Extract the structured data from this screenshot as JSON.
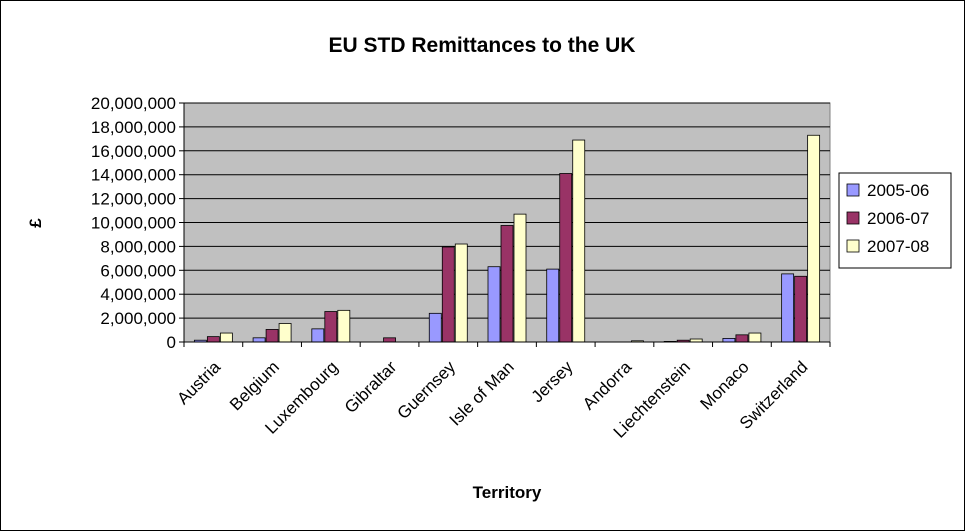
{
  "chart_data": {
    "type": "bar",
    "title": "EU STD Remittances to the UK",
    "xlabel": "Territory",
    "ylabel": "£",
    "ylim": [
      0,
      20000000
    ],
    "yticks": [
      "0",
      "2,000,000",
      "4,000,000",
      "6,000,000",
      "8,000,000",
      "10,000,000",
      "12,000,000",
      "14,000,000",
      "16,000,000",
      "18,000,000",
      "20,000,000"
    ],
    "grid": true,
    "legend_position": "right",
    "categories": [
      "Austria",
      "Belgium",
      "Luxembourg",
      "Gibraltar",
      "Guernsey",
      "Isle of Man",
      "Jersey",
      "Andorra",
      "Liechtenstein",
      "Monaco",
      "Switzerland"
    ],
    "series": [
      {
        "name": "2005-06",
        "color": "#9999ff",
        "values": [
          150000,
          350000,
          1100000,
          0,
          2400000,
          6300000,
          6100000,
          0,
          50000,
          300000,
          5700000
        ]
      },
      {
        "name": "2006-07",
        "color": "#993366",
        "values": [
          450000,
          1050000,
          2550000,
          350000,
          7950000,
          9750000,
          14100000,
          0,
          150000,
          600000,
          5500000
        ]
      },
      {
        "name": "2007-08",
        "color": "#ffffcc",
        "values": [
          750000,
          1550000,
          2650000,
          0,
          8200000,
          10700000,
          16900000,
          100000,
          250000,
          750000,
          17300000
        ]
      }
    ]
  },
  "colors": {
    "plot_background": "#c0c0c0",
    "gridline": "#000000"
  }
}
